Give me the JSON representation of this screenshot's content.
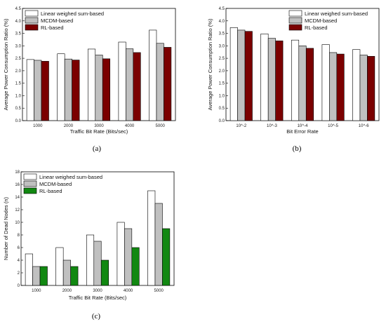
{
  "chart_data": [
    {
      "id": "a",
      "caption": "(a)",
      "type": "bar",
      "categories": [
        "1000",
        "2000",
        "3000",
        "4000",
        "5000"
      ],
      "xlabel": "Traffic Bit Rate (Bits/sec)",
      "ylabel": "Average Power Consumption Ratio (%)",
      "ylim": [
        0,
        4.5
      ],
      "yticks": [
        "0.0",
        "0.5",
        "1.0",
        "1.5",
        "2.0",
        "2.5",
        "3.0",
        "3.5",
        "4.0",
        "4.5"
      ],
      "legend_position": "top-left",
      "series": [
        {
          "name": "Linear weighed sum-based",
          "color": "#ffffff",
          "values": [
            2.45,
            2.68,
            2.87,
            3.15,
            3.63
          ]
        },
        {
          "name": "MCDM-based",
          "color": "#c0c0c0",
          "values": [
            2.42,
            2.47,
            2.63,
            2.88,
            3.1
          ]
        },
        {
          "name": "RL-based",
          "color": "#7b0000",
          "values": [
            2.38,
            2.43,
            2.48,
            2.73,
            2.94
          ]
        }
      ]
    },
    {
      "id": "b",
      "caption": "(b)",
      "type": "bar",
      "categories": [
        "10^-2",
        "10^-3",
        "10^-4",
        "10^-5",
        "10^-6"
      ],
      "xlabel": "Bit Error Rate",
      "ylabel": "Average Power Consumption Ratio (%)",
      "ylim": [
        0,
        4.5
      ],
      "yticks": [
        "0.0",
        "0.5",
        "1.0",
        "1.5",
        "2.0",
        "2.5",
        "3.0",
        "3.5",
        "4.0",
        "4.5"
      ],
      "legend_position": "top-right",
      "series": [
        {
          "name": "Linear weighed sum-based",
          "color": "#ffffff",
          "values": [
            3.73,
            3.48,
            3.23,
            3.05,
            2.85
          ]
        },
        {
          "name": "MCDM-based",
          "color": "#c0c0c0",
          "values": [
            3.63,
            3.3,
            3.0,
            2.73,
            2.63
          ]
        },
        {
          "name": "RL-based",
          "color": "#7b0000",
          "values": [
            3.58,
            3.2,
            2.9,
            2.67,
            2.58
          ]
        }
      ]
    },
    {
      "id": "c",
      "caption": "(c)",
      "type": "bar",
      "categories": [
        "1000",
        "2000",
        "3000",
        "4000",
        "5000"
      ],
      "xlabel": "Traffic Bit Rate (Bits/sec)",
      "ylabel": "Number of Dead Nodes (n)",
      "ylim": [
        0,
        18
      ],
      "yticks": [
        "0",
        "2",
        "4",
        "6",
        "8",
        "10",
        "12",
        "14",
        "16",
        "18"
      ],
      "legend_position": "top-left",
      "series": [
        {
          "name": "Linear weighed sum-based",
          "color": "#ffffff",
          "values": [
            5,
            6,
            8,
            10,
            15
          ]
        },
        {
          "name": "MCDM-based",
          "color": "#c0c0c0",
          "values": [
            3,
            4,
            7,
            9,
            13
          ]
        },
        {
          "name": "RL-based",
          "color": "#118811",
          "values": [
            3,
            3,
            4,
            6,
            9
          ]
        }
      ]
    }
  ]
}
